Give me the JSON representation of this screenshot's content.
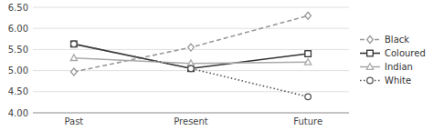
{
  "chart_data": {
    "type": "line",
    "categories": [
      "Past",
      "Present",
      "Future"
    ],
    "series": [
      {
        "name": "Black",
        "color": "#999999",
        "values": [
          4.97,
          5.55,
          6.3
        ],
        "marker": "diamond",
        "line_style": "dashed"
      },
      {
        "name": "Coloured",
        "color": "#333333",
        "values": [
          5.63,
          5.05,
          5.4
        ],
        "marker": "square",
        "line_style": "solid"
      },
      {
        "name": "Indian",
        "color": "#aaaaaa",
        "values": [
          5.3,
          5.17,
          5.2
        ],
        "marker": "triangle",
        "line_style": "solid"
      },
      {
        "name": "White",
        "color": "#555555",
        "values": [
          5.63,
          5.05,
          4.38
        ],
        "marker": "circle",
        "line_style": "dotted"
      }
    ],
    "ylim": [
      4.0,
      6.5
    ],
    "yticks": [
      {
        "value": 4.0,
        "label": "4.00"
      },
      {
        "value": 4.5,
        "label": "4.50"
      },
      {
        "value": 5.0,
        "label": "5.00"
      },
      {
        "value": 5.5,
        "label": "5.50"
      },
      {
        "value": 6.0,
        "label": "6.00"
      },
      {
        "value": 6.5,
        "label": "6.50"
      }
    ],
    "grid": true,
    "legend": "right"
  }
}
